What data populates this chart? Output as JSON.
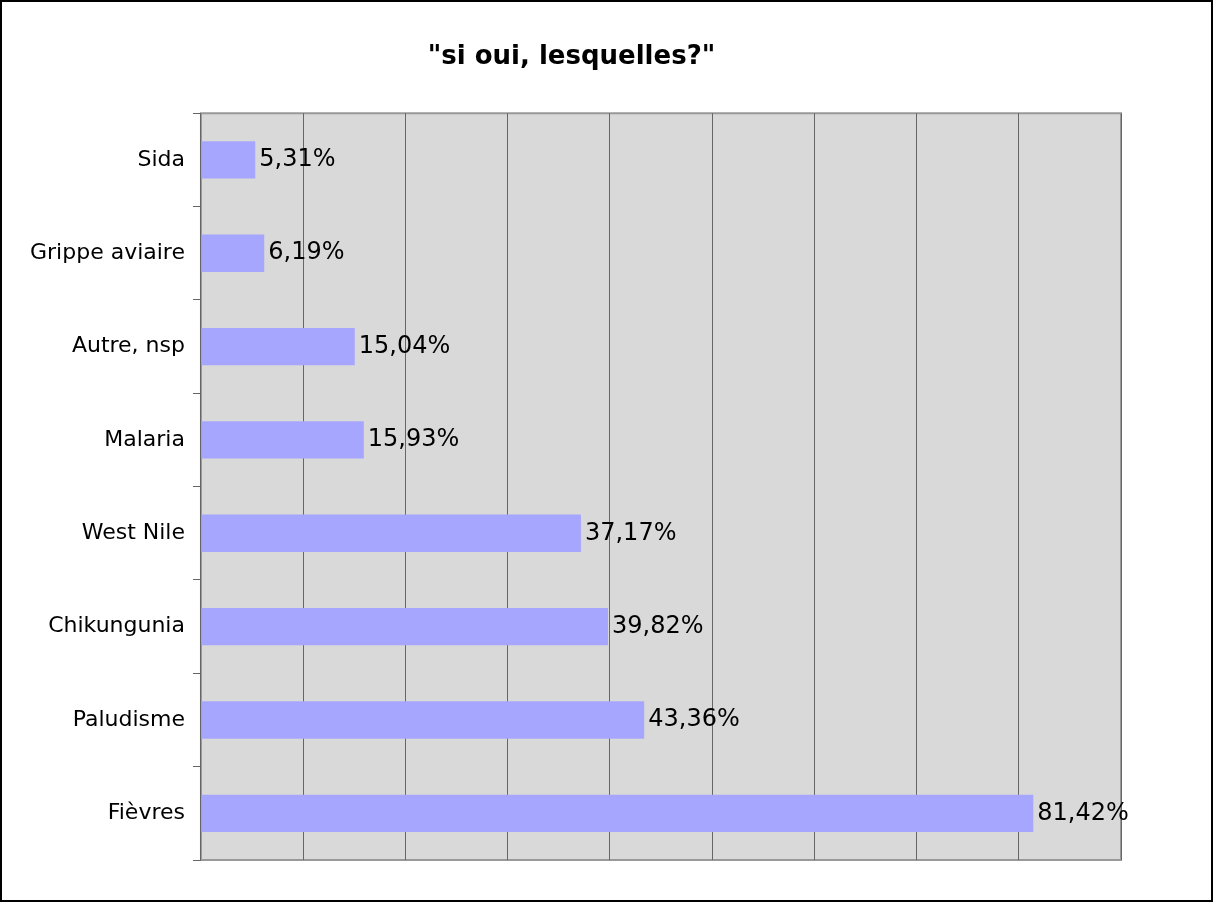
{
  "chart_data": {
    "type": "bar",
    "orientation": "horizontal",
    "title": "\"si oui, lesquelles?\"",
    "categories": [
      "Sida",
      "Grippe aviaire",
      "Autre, nsp",
      "Malaria",
      "West Nile",
      "Chikungunia",
      "Paludisme",
      "Fièvres"
    ],
    "values": [
      5.31,
      6.19,
      15.04,
      15.93,
      37.17,
      39.82,
      43.36,
      81.42
    ],
    "value_labels": [
      "5,31%",
      "6,19%",
      "15,04%",
      "15,93%",
      "37,17%",
      "39,82%",
      "43,36%",
      "81,42%"
    ],
    "color": "#a6a6ff",
    "xlim": [
      0,
      90
    ],
    "xticks": [
      {
        "value": 0,
        "label": null
      },
      {
        "value": 10,
        "label": null
      },
      {
        "value": 20,
        "label": null
      },
      {
        "value": 30,
        "label": null
      },
      {
        "value": 40,
        "label": null
      },
      {
        "value": 50,
        "label": null
      },
      {
        "value": 60,
        "label": null
      },
      {
        "value": 70,
        "label": null
      },
      {
        "value": 80,
        "label": null
      },
      {
        "value": 90,
        "label": null
      }
    ],
    "grid": "x",
    "tick_labels": "y",
    "legend": false
  }
}
